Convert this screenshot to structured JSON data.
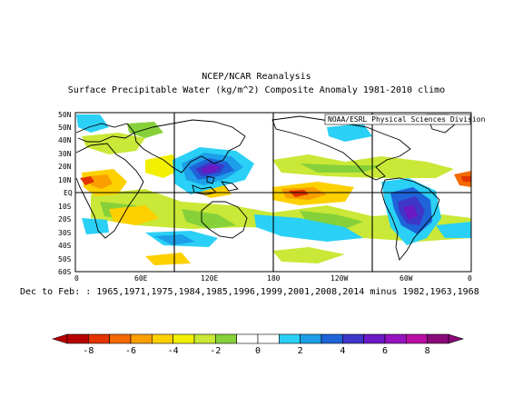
{
  "header": {
    "title_line1": "NCEP/NCAR Reanalysis",
    "title_line2": "Surface Precipitable Water (kg/m^2) Composite Anomaly 1981-2010 climo",
    "credit": "NOAA/ESRL Physical Sciences Division"
  },
  "map": {
    "lat_labels": [
      "50N",
      "50N",
      "40N",
      "30N",
      "20N",
      "10N",
      "EQ",
      "10S",
      "20S",
      "30S",
      "40S",
      "50S",
      "60S"
    ],
    "lon_labels": [
      "0",
      "60E",
      "120E",
      "180",
      "120W",
      "60W",
      "0"
    ],
    "grid_color": "#000000",
    "land_outline_color": "#000000"
  },
  "caption": "Dec to Feb: : 1965,1971,1975,1984,1985,1996,1999,2001,2008,2014 minus 1982,1963,1968",
  "colorbar": {
    "labels": [
      "-8",
      "-6",
      "-4",
      "-2",
      "0",
      "2",
      "4",
      "6",
      "8"
    ],
    "colors": [
      "#b80000",
      "#e23300",
      "#f46a00",
      "#fb9e00",
      "#fdd000",
      "#f2f000",
      "#c9e837",
      "#86d13a",
      "#ffffff",
      "#ffffff",
      "#2ad0f5",
      "#1c9fe8",
      "#1e64d8",
      "#3e36c8",
      "#6a19c4",
      "#9612bf",
      "#b90fa6",
      "#8a0a7a"
    ]
  }
}
